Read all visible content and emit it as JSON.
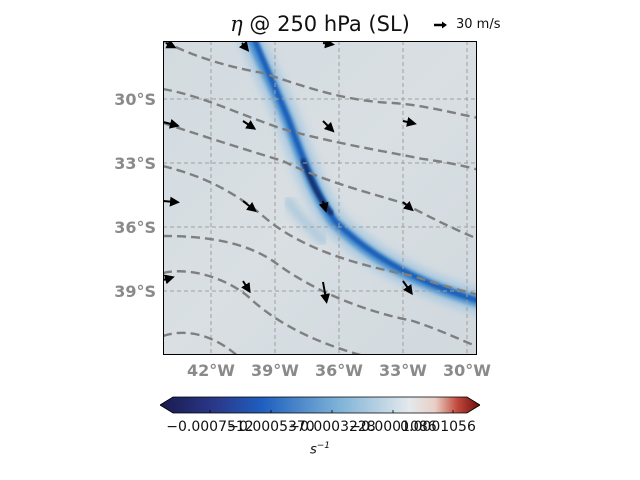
{
  "title": {
    "symbol": "η",
    "text": " @ 250 hPa (SL)"
  },
  "quiver_key": {
    "label": "30 m/s"
  },
  "map": {
    "lat_labels": [
      "30°S",
      "33°S",
      "36°S",
      "39°S"
    ],
    "lon_labels": [
      "42°W",
      "39°W",
      "36°W",
      "33°W",
      "30°W"
    ],
    "gridlines": true,
    "contour_style": "dashed-gray",
    "field_colormap": "blue-white-red"
  },
  "colorbar": {
    "tick_labels": [
      "−0.0007512",
      "−0.0005370",
      "−0.0003228",
      "−0.0001086",
      "0.0001056"
    ],
    "unit_label": "s",
    "unit_exponent": "−1",
    "colors": {
      "min": "#1a1a4e",
      "low": "#1f4fb5",
      "mid_blue": "#6aa2cf",
      "neutral": "#d6dde2",
      "high": "#8b1010"
    }
  }
}
